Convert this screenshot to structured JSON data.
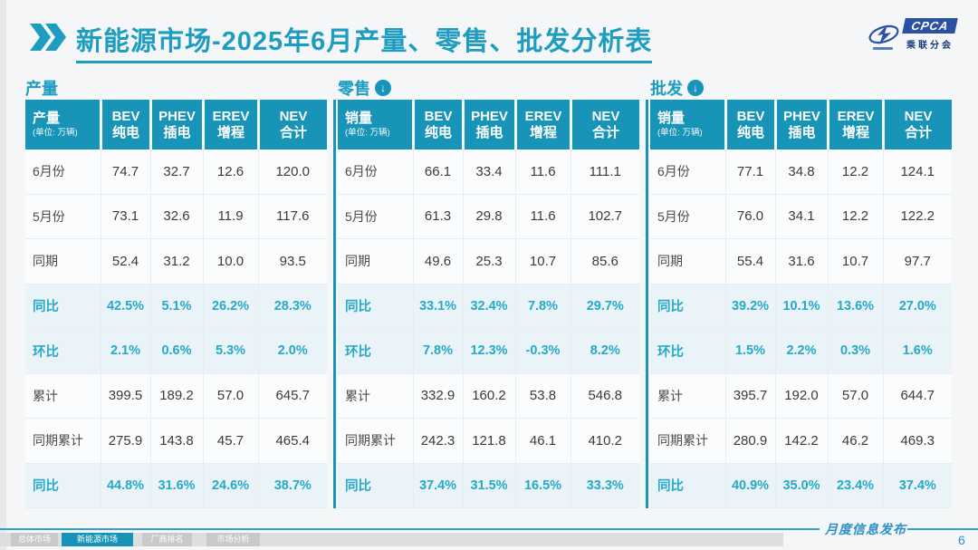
{
  "header": {
    "title_primary": "新能源市场",
    "title_secondary": "-2025年6月产量、零售、批发分析表"
  },
  "logo": {
    "abbr": "CPCA",
    "name": "乘联分会"
  },
  "watermark": "乘联分会",
  "colors": {
    "teal_header": "#1794b8",
    "teal_percent_text": "#27a9c8",
    "percent_row_bg": "#e9f3f8",
    "logo_blue": "#2b51a3",
    "footer_line_blue": "#2f9fcc"
  },
  "tables": [
    {
      "section_label": "产量",
      "arrow": false,
      "header": {
        "label": "产量",
        "unit": "(单位: 万辆)",
        "columns": [
          [
            "BEV",
            "纯电"
          ],
          [
            "PHEV",
            "插电"
          ],
          [
            "EREV",
            "增程"
          ],
          [
            "NEV",
            "合计"
          ]
        ]
      },
      "rows": [
        {
          "label": "6月份",
          "type": "normal",
          "values": [
            "74.7",
            "32.7",
            "12.6",
            "120.0"
          ]
        },
        {
          "label": "5月份",
          "type": "normal",
          "values": [
            "73.1",
            "32.6",
            "11.9",
            "117.6"
          ]
        },
        {
          "label": "同期",
          "type": "normal",
          "values": [
            "52.4",
            "31.2",
            "10.0",
            "93.5"
          ]
        },
        {
          "label": "同比",
          "type": "percent",
          "values": [
            "42.5%",
            "5.1%",
            "26.2%",
            "28.3%"
          ]
        },
        {
          "label": "环比",
          "type": "percent",
          "values": [
            "2.1%",
            "0.6%",
            "5.3%",
            "2.0%"
          ]
        },
        {
          "label": "累计",
          "type": "normal",
          "values": [
            "399.5",
            "189.2",
            "57.0",
            "645.7"
          ]
        },
        {
          "label": "同期累计",
          "type": "normal",
          "values": [
            "275.9",
            "143.8",
            "45.7",
            "465.4"
          ]
        },
        {
          "label": "同比",
          "type": "percent",
          "values": [
            "44.8%",
            "31.6%",
            "24.6%",
            "38.7%"
          ]
        }
      ]
    },
    {
      "section_label": "零售",
      "arrow": true,
      "header": {
        "label": "销量",
        "unit": "(单位: 万辆)",
        "columns": [
          [
            "BEV",
            "纯电"
          ],
          [
            "PHEV",
            "插电"
          ],
          [
            "EREV",
            "增程"
          ],
          [
            "NEV",
            "合计"
          ]
        ]
      },
      "rows": [
        {
          "label": "6月份",
          "type": "normal",
          "values": [
            "66.1",
            "33.4",
            "11.6",
            "111.1"
          ]
        },
        {
          "label": "5月份",
          "type": "normal",
          "values": [
            "61.3",
            "29.8",
            "11.6",
            "102.7"
          ]
        },
        {
          "label": "同期",
          "type": "normal",
          "values": [
            "49.6",
            "25.3",
            "10.7",
            "85.6"
          ]
        },
        {
          "label": "同比",
          "type": "percent",
          "values": [
            "33.1%",
            "32.4%",
            "7.8%",
            "29.7%"
          ]
        },
        {
          "label": "环比",
          "type": "percent",
          "values": [
            "7.8%",
            "12.3%",
            "-0.3%",
            "8.2%"
          ]
        },
        {
          "label": "累计",
          "type": "normal",
          "values": [
            "332.9",
            "160.2",
            "53.8",
            "546.8"
          ]
        },
        {
          "label": "同期累计",
          "type": "normal",
          "values": [
            "242.3",
            "121.8",
            "46.1",
            "410.2"
          ]
        },
        {
          "label": "同比",
          "type": "percent",
          "values": [
            "37.4%",
            "31.5%",
            "16.5%",
            "33.3%"
          ]
        }
      ]
    },
    {
      "section_label": "批发",
      "arrow": true,
      "header": {
        "label": "销量",
        "unit": "(单位: 万辆)",
        "columns": [
          [
            "BEV",
            "纯电"
          ],
          [
            "PHEV",
            "插电"
          ],
          [
            "EREV",
            "增程"
          ],
          [
            "NEV",
            "合计"
          ]
        ]
      },
      "rows": [
        {
          "label": "6月份",
          "type": "normal",
          "values": [
            "77.1",
            "34.8",
            "12.2",
            "124.1"
          ]
        },
        {
          "label": "5月份",
          "type": "normal",
          "values": [
            "76.0",
            "34.1",
            "12.2",
            "122.2"
          ]
        },
        {
          "label": "同期",
          "type": "normal",
          "values": [
            "55.4",
            "31.6",
            "10.7",
            "97.7"
          ]
        },
        {
          "label": "同比",
          "type": "percent",
          "values": [
            "39.2%",
            "10.1%",
            "13.6%",
            "27.0%"
          ]
        },
        {
          "label": "环比",
          "type": "percent",
          "values": [
            "1.5%",
            "2.2%",
            "0.3%",
            "1.6%"
          ]
        },
        {
          "label": "累计",
          "type": "normal",
          "values": [
            "395.7",
            "192.0",
            "57.0",
            "644.7"
          ]
        },
        {
          "label": "同期累计",
          "type": "normal",
          "values": [
            "280.9",
            "142.2",
            "46.2",
            "469.3"
          ]
        },
        {
          "label": "同比",
          "type": "percent",
          "values": [
            "40.9%",
            "35.0%",
            "23.4%",
            "37.4%"
          ]
        }
      ]
    }
  ],
  "footer": {
    "tabs": [
      {
        "label": "总体市场",
        "active": false
      },
      {
        "label": "新能源市场",
        "active": true
      },
      {
        "label": "厂商排名",
        "active": false
      },
      {
        "label": "市场分析",
        "active": false
      }
    ],
    "publication_label": "月度信息发布",
    "page_number": "6"
  }
}
